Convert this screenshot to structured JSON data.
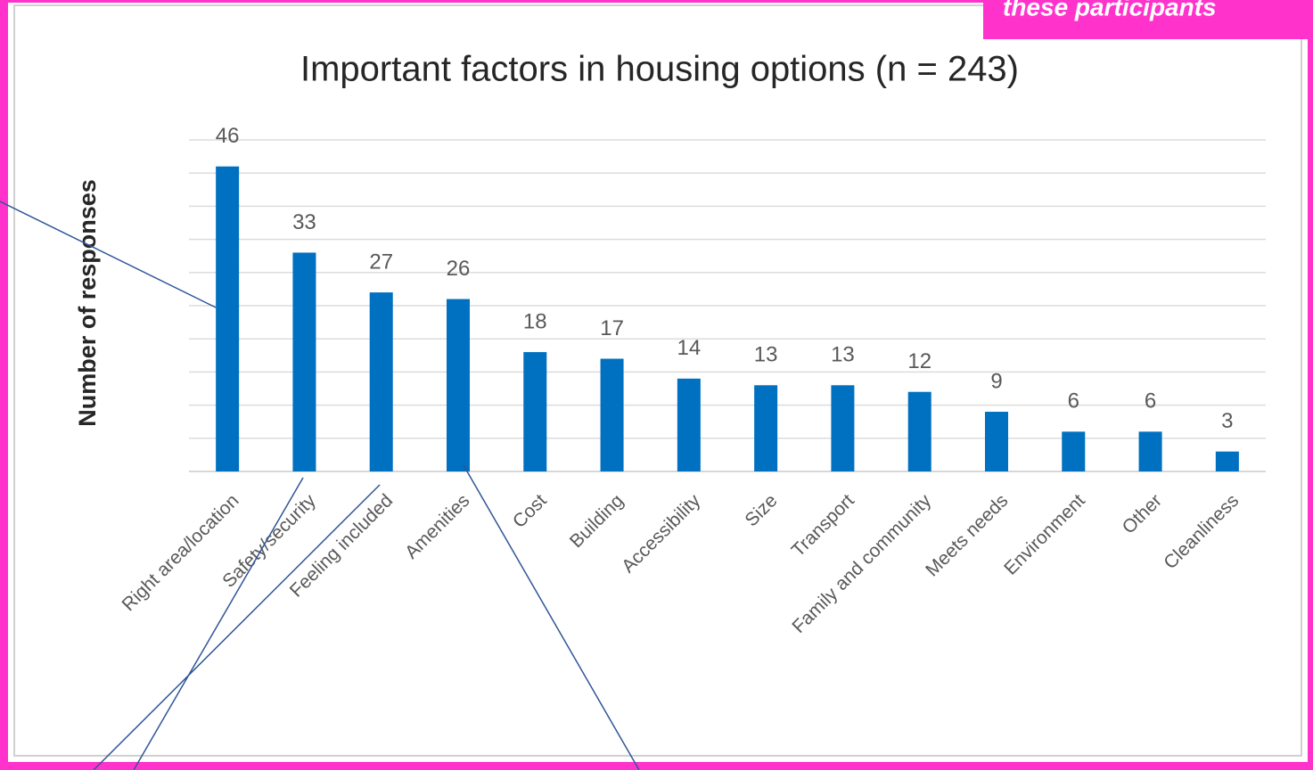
{
  "annotation": "these participants",
  "chart_data": {
    "type": "bar",
    "title": "Important factors in housing options (n = 243)",
    "y_label": "Number of responses",
    "categories": [
      "Right area/location",
      "Safety/security",
      "Feeling included",
      "Amenities",
      "Cost",
      "Building",
      "Accessibility",
      "Size",
      "Transport",
      "Family and community",
      "Meets needs",
      "Environment",
      "Other",
      "Cleanliness"
    ],
    "values": [
      46,
      33,
      27,
      26,
      18,
      17,
      14,
      13,
      13,
      12,
      9,
      6,
      6,
      3
    ],
    "color": "#0070c0",
    "ylim": [
      0,
      50
    ],
    "yticks": [
      0,
      5,
      10,
      15,
      20,
      25,
      30,
      35,
      40,
      45,
      50
    ],
    "grid": true
  }
}
